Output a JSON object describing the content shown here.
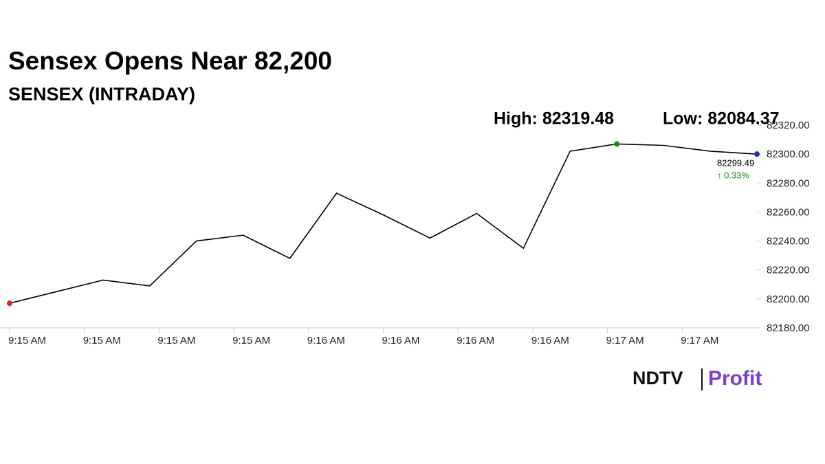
{
  "chart_data": {
    "type": "line",
    "title": "Sensex Opens Near 82,200",
    "subtitle": "SENSEX (INTRADAY)",
    "high_text": "High: 82319.48",
    "low_text": "Low: 82084.37",
    "last_label": "82299.49",
    "change_label": "↑ 0.33%",
    "brand": "NDTV",
    "brand_product": "Profit",
    "x": [
      0,
      1,
      2,
      3,
      4,
      5,
      6,
      7,
      8,
      9,
      10,
      11,
      12,
      13,
      14,
      15,
      16
    ],
    "series": [
      {
        "color": "#000000",
        "values": [
          82197,
          82205,
          82213,
          82209,
          82240,
          82244,
          82228,
          82273,
          82258,
          82242,
          82259,
          82235,
          82302,
          82307,
          82306,
          82302,
          82300
        ]
      }
    ],
    "markers": [
      {
        "at": 0,
        "color": "#e0201c"
      },
      {
        "at": 13,
        "color": "#1a8a1a"
      },
      {
        "at": 16,
        "color": "#1a2fc4"
      }
    ],
    "xlim": [
      0,
      16
    ],
    "xticks": [
      {
        "value": 0,
        "label": "9:15 AM"
      },
      {
        "value": 1.6,
        "label": "9:15 AM"
      },
      {
        "value": 3.2,
        "label": "9:15 AM"
      },
      {
        "value": 4.8,
        "label": "9:15 AM"
      },
      {
        "value": 6.4,
        "label": "9:16 AM"
      },
      {
        "value": 8,
        "label": "9:16 AM"
      },
      {
        "value": 9.6,
        "label": "9:16 AM"
      },
      {
        "value": 11.2,
        "label": "9:16 AM"
      },
      {
        "value": 12.8,
        "label": "9:17 AM"
      },
      {
        "value": 14.4,
        "label": "9:17 AM"
      }
    ],
    "ylim": [
      82180,
      82320
    ],
    "yticks": [
      {
        "value": 82180,
        "label": "82180.00"
      },
      {
        "value": 82200,
        "label": "82200.00"
      },
      {
        "value": 82220,
        "label": "82220.00"
      },
      {
        "value": 82240,
        "label": "82240.00"
      },
      {
        "value": 82260,
        "label": "82260.00"
      },
      {
        "value": 82280,
        "label": "82280.00"
      },
      {
        "value": 82300,
        "label": "82300.00"
      },
      {
        "value": 82320,
        "label": "82320.00"
      }
    ]
  }
}
